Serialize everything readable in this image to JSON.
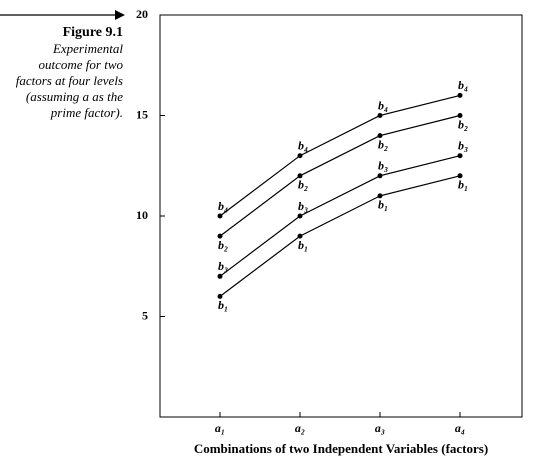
{
  "figure": {
    "number": "Figure 9.1",
    "caption_lines": [
      "Experimental",
      "outcome for two",
      "factors at four levels",
      "(assuming a as the",
      "prime factor)."
    ]
  },
  "chart_data": {
    "type": "line",
    "xlabel": "Combinations of two Independent Variables (factors)",
    "categories": [
      "a₁",
      "a₂",
      "a₃",
      "a₄"
    ],
    "series": [
      {
        "name": "b₄",
        "color": "#000000",
        "values": [
          10,
          13,
          15,
          16
        ]
      },
      {
        "name": "b₂",
        "color": "#000000",
        "values": [
          9,
          12,
          14,
          15
        ]
      },
      {
        "name": "b₃",
        "color": "#000000",
        "values": [
          7,
          10,
          12,
          13
        ]
      },
      {
        "name": "b₁",
        "color": "#000000",
        "values": [
          6,
          9,
          11,
          12
        ]
      }
    ],
    "ylim": [
      0,
      20
    ],
    "yticks": [
      5,
      10,
      15,
      20
    ]
  }
}
